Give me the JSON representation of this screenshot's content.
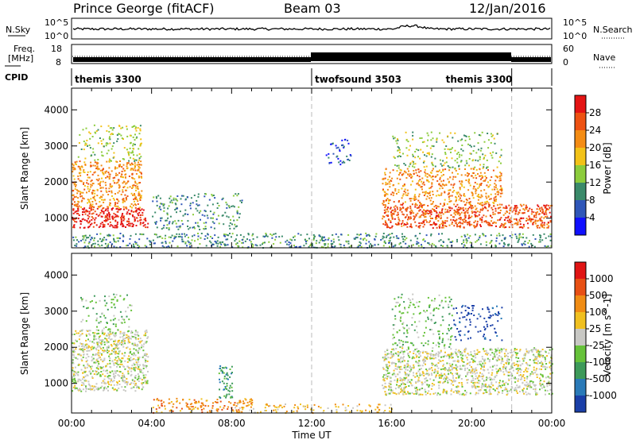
{
  "header": {
    "station": "Prince George (fitACF)",
    "beam": "Beam 03",
    "date": "12/Jan/2016"
  },
  "summary_panels": {
    "nsky_label": "N.Sky",
    "nsearch_label": "N.Search",
    "noise_ticks": [
      "10^5",
      "10^0"
    ],
    "freq_label_1": "Freq.",
    "freq_label_2": "[MHz]",
    "freq_ticks": [
      "18",
      "8"
    ],
    "nave_label": "Nave",
    "nave_ticks": [
      "60",
      "0"
    ],
    "cpid_label": "CPID"
  },
  "modes": [
    {
      "name": "themis 3300",
      "start_hour": 0.0
    },
    {
      "name": "twofsound 3503",
      "start_hour": 12.0
    },
    {
      "name": "themis 3300",
      "start_hour": 22.0
    }
  ],
  "axes": {
    "y_label": "Slant Range [km]",
    "y_ticks": [
      "1000",
      "2000",
      "3000",
      "4000"
    ],
    "x_ticks": [
      "00:00",
      "04:00",
      "08:00",
      "12:00",
      "16:00",
      "20:00",
      "00:00"
    ],
    "x_label": "Time UT"
  },
  "power_colorbar": {
    "label": "Power [dB]",
    "labels": [
      "4",
      "8",
      "12",
      "16",
      "20",
      "24",
      "28"
    ],
    "colors": [
      "#1010ff",
      "#2f56b8",
      "#3a8a6a",
      "#8ccc3c",
      "#f2c218",
      "#f48c14",
      "#ee5212",
      "#e41414"
    ]
  },
  "velocity_colorbar": {
    "label": "Velocity [m s^-1]",
    "labels": [
      "1000",
      "500",
      "100",
      "25",
      "-25",
      "-100",
      "-500",
      "-1000"
    ],
    "colors": [
      "#1a3fa8",
      "#2a7ab8",
      "#3d9a5a",
      "#66c23a",
      "#c8c8c4",
      "#f0c020",
      "#f08c14",
      "#e85014",
      "#e01414"
    ]
  },
  "chart_data": [
    {
      "type": "heatmap",
      "title": "Power",
      "x_range_hours": [
        0,
        24
      ],
      "ylim_km": [
        180,
        4600
      ],
      "regions": [
        {
          "t0": 0.0,
          "t1": 3.8,
          "rmin": 750,
          "rmax": 1300,
          "level": 7,
          "density": 0.95
        },
        {
          "t0": 0.0,
          "t1": 3.5,
          "rmin": 1300,
          "rmax": 2600,
          "level": 5,
          "density": 0.75
        },
        {
          "t0": 0.3,
          "t1": 3.5,
          "rmin": 2600,
          "rmax": 3600,
          "level": 3,
          "density": 0.35
        },
        {
          "t0": 4.0,
          "t1": 8.5,
          "rmin": 700,
          "rmax": 1700,
          "level": 2,
          "density": 0.35
        },
        {
          "t0": 0.0,
          "t1": 24.0,
          "rmin": 200,
          "rmax": 600,
          "level": 2,
          "density": 0.5
        },
        {
          "t0": 12.7,
          "t1": 14.0,
          "rmin": 2500,
          "rmax": 3200,
          "level": 1,
          "density": 0.35
        },
        {
          "t0": 15.5,
          "t1": 24.0,
          "rmin": 750,
          "rmax": 1400,
          "level": 6,
          "density": 0.95
        },
        {
          "t0": 15.5,
          "t1": 21.5,
          "rmin": 1400,
          "rmax": 2400,
          "level": 5,
          "density": 0.6
        },
        {
          "t0": 16.0,
          "t1": 21.5,
          "rmin": 2400,
          "rmax": 3400,
          "level": 3,
          "density": 0.3
        }
      ]
    },
    {
      "type": "heatmap",
      "title": "Velocity",
      "x_range_hours": [
        0,
        24
      ],
      "ylim_km": [
        180,
        4600
      ],
      "regions": [
        {
          "t0": 0.0,
          "t1": 3.8,
          "rmin": 800,
          "rmax": 2500,
          "level": 4,
          "density": 0.9
        },
        {
          "t0": 0.4,
          "t1": 3.0,
          "rmin": 2500,
          "rmax": 3500,
          "level": 3,
          "density": 0.25
        },
        {
          "t0": 4.0,
          "t1": 9.0,
          "rmin": 200,
          "rmax": 600,
          "level": 6,
          "density": 0.55
        },
        {
          "t0": 7.3,
          "t1": 8.0,
          "rmin": 600,
          "rmax": 1500,
          "level": 2,
          "density": 0.7
        },
        {
          "t0": 8.0,
          "t1": 16.0,
          "rmin": 200,
          "rmax": 450,
          "level": 5,
          "density": 0.4
        },
        {
          "t0": 15.5,
          "t1": 24.0,
          "rmin": 700,
          "rmax": 2000,
          "level": 4,
          "density": 0.85
        },
        {
          "t0": 16.0,
          "t1": 19.0,
          "rmin": 2000,
          "rmax": 3500,
          "level": 3,
          "density": 0.3
        },
        {
          "t0": 19.0,
          "t1": 21.5,
          "rmin": 2200,
          "rmax": 3200,
          "level": 0,
          "density": 0.3
        }
      ]
    }
  ]
}
